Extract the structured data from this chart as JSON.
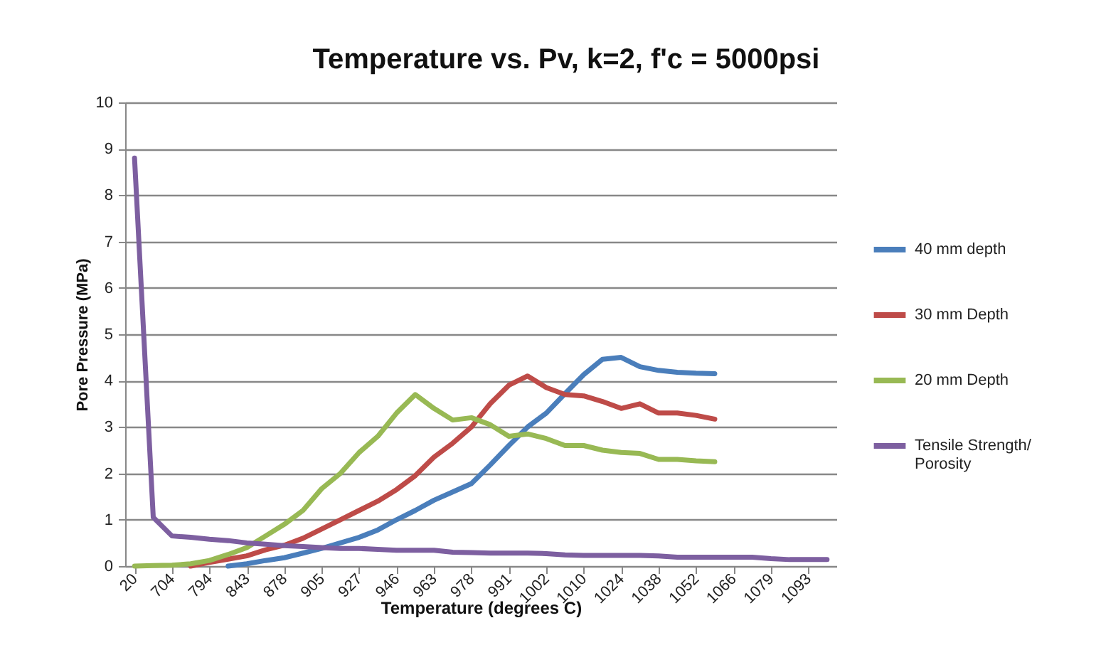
{
  "chart_data": {
    "type": "line",
    "title": "Temperature vs. Pv, k=2, f'c = 5000psi",
    "xlabel": "Temperature (degrees C)",
    "ylabel": "Pore Pressure (MPa)",
    "categories": [
      "20",
      null,
      "704",
      null,
      "794",
      null,
      "843",
      null,
      "878",
      null,
      "905",
      null,
      "927",
      null,
      "946",
      null,
      "963",
      null,
      "978",
      null,
      "991",
      null,
      "1002",
      null,
      "1010",
      null,
      "1024",
      null,
      "1038",
      null,
      "1052",
      null,
      "1066",
      null,
      "1079",
      null,
      "1093",
      null
    ],
    "series": [
      {
        "name": "40 mm depth",
        "color": "#4a7ebb",
        "values": [
          null,
          null,
          null,
          null,
          null,
          0,
          0.05,
          0.12,
          0.18,
          0.28,
          0.38,
          0.5,
          0.62,
          0.78,
          1.0,
          1.2,
          1.42,
          1.6,
          1.78,
          2.18,
          2.6,
          3.0,
          3.3,
          3.72,
          4.13,
          4.46,
          4.5,
          4.3,
          4.22,
          4.18,
          4.16,
          4.15,
          null,
          null,
          null,
          null,
          null,
          null
        ]
      },
      {
        "name": "30 mm Depth",
        "color": "#be4b48",
        "values": [
          null,
          null,
          null,
          0,
          0.08,
          0.15,
          0.22,
          0.35,
          0.45,
          0.6,
          0.8,
          1.0,
          1.2,
          1.4,
          1.65,
          1.95,
          2.35,
          2.65,
          3.0,
          3.5,
          3.9,
          4.1,
          3.85,
          3.7,
          3.67,
          3.55,
          3.4,
          3.5,
          3.3,
          3.3,
          3.25,
          3.17,
          null,
          null,
          null,
          null,
          null,
          null
        ]
      },
      {
        "name": "20 mm Depth",
        "color": "#98b954",
        "values": [
          0,
          0.01,
          0.02,
          0.05,
          0.12,
          0.25,
          0.4,
          0.65,
          0.9,
          1.2,
          1.67,
          2.0,
          2.45,
          2.8,
          3.3,
          3.7,
          3.4,
          3.15,
          3.2,
          3.05,
          2.8,
          2.85,
          2.75,
          2.6,
          2.6,
          2.5,
          2.45,
          2.43,
          2.3,
          2.3,
          2.27,
          2.25,
          null,
          null,
          null,
          null,
          null,
          null
        ]
      },
      {
        "name": "Tensile Strength/ Porosity",
        "color": "#7d5fa0",
        "values": [
          8.8,
          1.05,
          0.65,
          0.62,
          0.58,
          0.55,
          0.5,
          0.47,
          0.44,
          0.42,
          0.4,
          0.38,
          0.38,
          0.36,
          0.34,
          0.34,
          0.34,
          0.3,
          0.29,
          0.28,
          0.28,
          0.28,
          0.27,
          0.24,
          0.23,
          0.23,
          0.23,
          0.23,
          0.22,
          0.19,
          0.19,
          0.19,
          0.19,
          0.19,
          0.16,
          0.14,
          0.14,
          0.14
        ]
      }
    ],
    "ylim": [
      0,
      10
    ],
    "yticks": [
      0,
      1,
      2,
      3,
      4,
      5,
      6,
      7,
      8,
      9,
      10
    ],
    "grid": "y",
    "legend": "right",
    "marker": "none",
    "line_style": "solid"
  }
}
